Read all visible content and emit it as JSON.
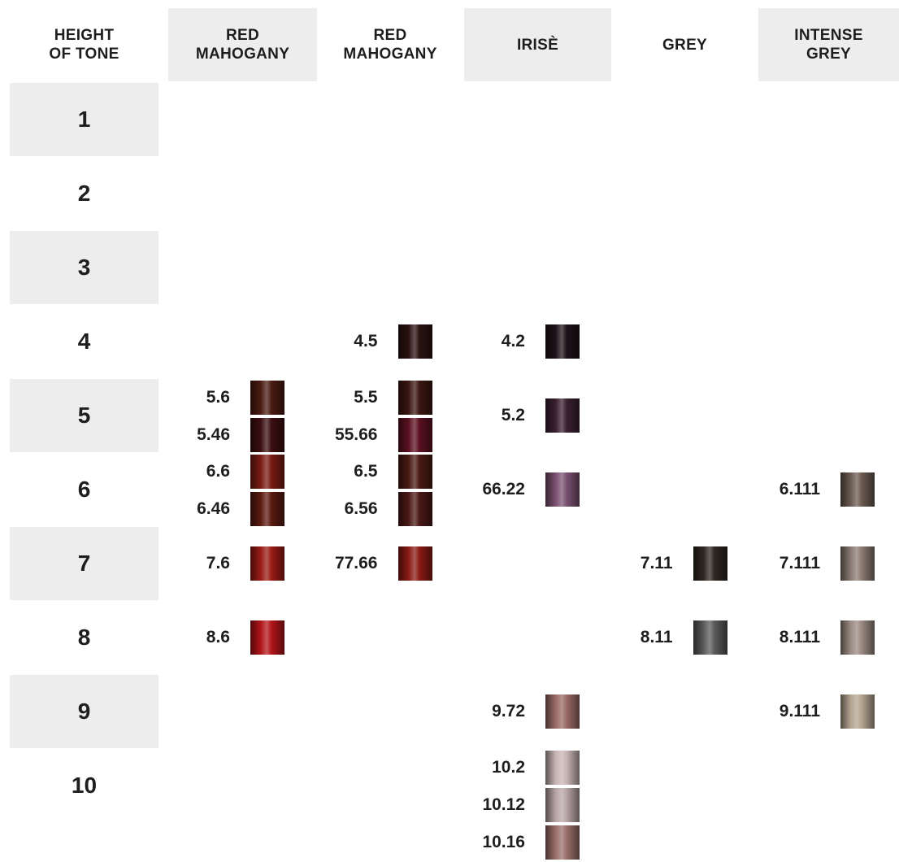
{
  "header": [
    "HEIGHT OF TONE",
    "RED MAHOGANY",
    "RED MAHOGANY",
    "IRISÈ",
    "GREY",
    "INTENSE GREY"
  ],
  "rows": [
    {
      "tone": "1",
      "cells": [
        [],
        [],
        [],
        [],
        []
      ]
    },
    {
      "tone": "2",
      "cells": [
        [],
        [],
        [],
        [],
        []
      ]
    },
    {
      "tone": "3",
      "cells": [
        [],
        [],
        [],
        [],
        []
      ]
    },
    {
      "tone": "4",
      "cells": [
        [],
        [
          {
            "code": "4.5",
            "color": "#2a1210"
          }
        ],
        [
          {
            "code": "4.2",
            "color": "#1e1218"
          }
        ],
        [],
        []
      ]
    },
    {
      "tone": "5",
      "cells": [
        [
          {
            "code": "5.6",
            "color": "#4a1a12"
          },
          {
            "code": "5.46",
            "color": "#3a0e10"
          }
        ],
        [
          {
            "code": "5.5",
            "color": "#3a1612"
          },
          {
            "code": "55.66",
            "color": "#5a1020"
          }
        ],
        [
          {
            "code": "5.2",
            "color": "#3a2030"
          }
        ],
        [],
        []
      ]
    },
    {
      "tone": "6",
      "cells": [
        [
          {
            "code": "6.6",
            "color": "#7a1a14"
          },
          {
            "code": "6.46",
            "color": "#5a1a10"
          }
        ],
        [
          {
            "code": "6.5",
            "color": "#4a1a14"
          },
          {
            "code": "6.56",
            "color": "#4a1816"
          }
        ],
        [
          {
            "code": "66.22",
            "color": "#7a5070"
          }
        ],
        [],
        [
          {
            "code": "6.111",
            "color": "#6a5a50"
          }
        ]
      ]
    },
    {
      "tone": "7",
      "cells": [
        [
          {
            "code": "7.6",
            "color": "#9a1a14"
          }
        ],
        [
          {
            "code": "77.66",
            "color": "#8a1a14"
          }
        ],
        [],
        [
          {
            "code": "7.11",
            "color": "#2e2620"
          }
        ],
        [
          {
            "code": "7.111",
            "color": "#8a7a72"
          }
        ]
      ]
    },
    {
      "tone": "8",
      "cells": [
        [
          {
            "code": "8.6",
            "color": "#b01418"
          }
        ],
        [],
        [],
        [
          {
            "code": "8.11",
            "color": "#5a5a5a"
          }
        ],
        [
          {
            "code": "8.111",
            "color": "#9a8a82"
          }
        ]
      ]
    },
    {
      "tone": "9",
      "cells": [
        [],
        [],
        [
          {
            "code": "9.72",
            "color": "#9a6a66"
          }
        ],
        [],
        [
          {
            "code": "9.111",
            "color": "#b4a490"
          }
        ]
      ]
    },
    {
      "tone": "10",
      "cells": [
        [],
        [],
        [
          {
            "code": "10.2",
            "color": "#c8b4b4"
          },
          {
            "code": "10.12",
            "color": "#b8a4a6"
          },
          {
            "code": "10.16",
            "color": "#9a6e6a"
          }
        ],
        [],
        []
      ]
    }
  ]
}
